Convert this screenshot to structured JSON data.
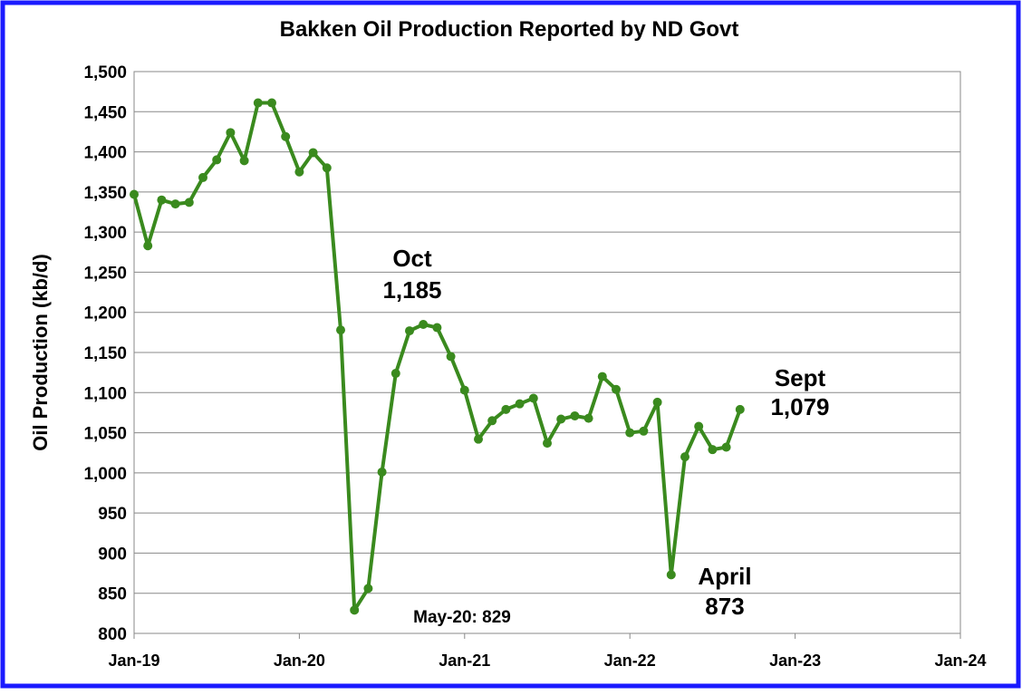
{
  "chart_data": {
    "type": "line",
    "title": "Bakken Oil Production Reported by ND Govt",
    "y_label": "Oil Production (kb/d)",
    "x": [
      "2019-01",
      "2019-02",
      "2019-03",
      "2019-04",
      "2019-05",
      "2019-06",
      "2019-07",
      "2019-08",
      "2019-09",
      "2019-10",
      "2019-11",
      "2019-12",
      "2020-01",
      "2020-02",
      "2020-03",
      "2020-04",
      "2020-05",
      "2020-06",
      "2020-07",
      "2020-08",
      "2020-09",
      "2020-10",
      "2020-11",
      "2020-12",
      "2021-01",
      "2021-02",
      "2021-03",
      "2021-04",
      "2021-05",
      "2021-06",
      "2021-07",
      "2021-08",
      "2021-09",
      "2021-10",
      "2021-11",
      "2021-12",
      "2022-01",
      "2022-02",
      "2022-03",
      "2022-04",
      "2022-05",
      "2022-06",
      "2022-07",
      "2022-08",
      "2022-09"
    ],
    "series": [
      {
        "name": "Oil Production",
        "color": "#3a8a1e",
        "values": [
          1347,
          1283,
          1340,
          1335,
          1337,
          1368,
          1390,
          1424,
          1389,
          1461,
          1461,
          1419,
          1375,
          1399,
          1380,
          1178,
          829,
          856,
          1001,
          1124,
          1177,
          1185,
          1181,
          1145,
          1103,
          1042,
          1065,
          1079,
          1086,
          1093,
          1037,
          1067,
          1071,
          1068,
          1120,
          1104,
          1050,
          1052,
          1088,
          873,
          1020,
          1058,
          1029,
          1032,
          1079
        ]
      }
    ],
    "xlim": [
      "2019-01",
      "2024-01"
    ],
    "xticks": [
      {
        "value": "2019-01",
        "label": "Jan-19"
      },
      {
        "value": "2020-01",
        "label": "Jan-20"
      },
      {
        "value": "2021-01",
        "label": "Jan-21"
      },
      {
        "value": "2022-01",
        "label": "Jan-22"
      },
      {
        "value": "2023-01",
        "label": "Jan-23"
      },
      {
        "value": "2024-01",
        "label": "Jan-24"
      }
    ],
    "ylim": [
      800,
      1500
    ],
    "yticks": [
      800,
      850,
      900,
      950,
      {
        "value": 1000,
        "label": "1,000"
      },
      {
        "value": 1050,
        "label": "1,050"
      },
      {
        "value": 1100,
        "label": "1,100"
      },
      {
        "value": 1150,
        "label": "1,150"
      },
      {
        "value": 1200,
        "label": "1,200"
      },
      {
        "value": 1250,
        "label": "1,250"
      },
      {
        "value": 1300,
        "label": "1,300"
      },
      {
        "value": 1350,
        "label": "1,350"
      },
      {
        "value": 1400,
        "label": "1,400"
      },
      {
        "value": 1450,
        "label": "1,450"
      },
      {
        "value": 1500,
        "label": "1,500"
      }
    ],
    "grid": true,
    "annotations": [
      {
        "text": "Oct",
        "value_label": "1,185"
      },
      {
        "text": "Sept",
        "value_label": "1,079"
      },
      {
        "text": "April",
        "value_label": "873"
      },
      {
        "text": "May-20: 829"
      }
    ]
  }
}
